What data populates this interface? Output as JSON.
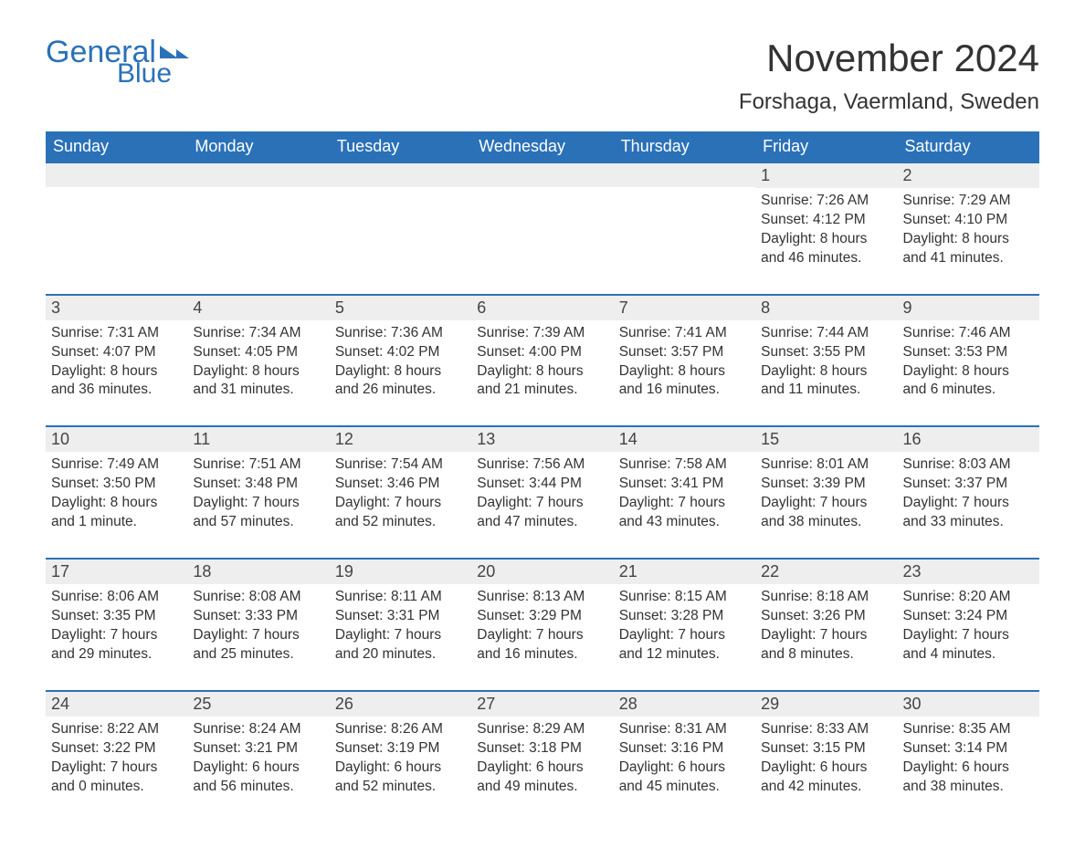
{
  "logo": {
    "text1": "General",
    "text2": "Blue"
  },
  "title": "November 2024",
  "location": "Forshaga, Vaermland, Sweden",
  "colors": {
    "brand": "#2a71b8",
    "header_bg": "#2a71b8",
    "header_text": "#ffffff",
    "daynum_bg": "#eeeeee",
    "text": "#333333",
    "page_bg": "#ffffff"
  },
  "weekdays": [
    "Sunday",
    "Monday",
    "Tuesday",
    "Wednesday",
    "Thursday",
    "Friday",
    "Saturday"
  ],
  "labels": {
    "sunrise": "Sunrise:",
    "sunset": "Sunset:",
    "daylight": "Daylight:"
  },
  "weeks": [
    [
      null,
      null,
      null,
      null,
      null,
      {
        "day": "1",
        "sunrise": "7:26 AM",
        "sunset": "4:12 PM",
        "daylight": "8 hours and 46 minutes."
      },
      {
        "day": "2",
        "sunrise": "7:29 AM",
        "sunset": "4:10 PM",
        "daylight": "8 hours and 41 minutes."
      }
    ],
    [
      {
        "day": "3",
        "sunrise": "7:31 AM",
        "sunset": "4:07 PM",
        "daylight": "8 hours and 36 minutes."
      },
      {
        "day": "4",
        "sunrise": "7:34 AM",
        "sunset": "4:05 PM",
        "daylight": "8 hours and 31 minutes."
      },
      {
        "day": "5",
        "sunrise": "7:36 AM",
        "sunset": "4:02 PM",
        "daylight": "8 hours and 26 minutes."
      },
      {
        "day": "6",
        "sunrise": "7:39 AM",
        "sunset": "4:00 PM",
        "daylight": "8 hours and 21 minutes."
      },
      {
        "day": "7",
        "sunrise": "7:41 AM",
        "sunset": "3:57 PM",
        "daylight": "8 hours and 16 minutes."
      },
      {
        "day": "8",
        "sunrise": "7:44 AM",
        "sunset": "3:55 PM",
        "daylight": "8 hours and 11 minutes."
      },
      {
        "day": "9",
        "sunrise": "7:46 AM",
        "sunset": "3:53 PM",
        "daylight": "8 hours and 6 minutes."
      }
    ],
    [
      {
        "day": "10",
        "sunrise": "7:49 AM",
        "sunset": "3:50 PM",
        "daylight": "8 hours and 1 minute."
      },
      {
        "day": "11",
        "sunrise": "7:51 AM",
        "sunset": "3:48 PM",
        "daylight": "7 hours and 57 minutes."
      },
      {
        "day": "12",
        "sunrise": "7:54 AM",
        "sunset": "3:46 PM",
        "daylight": "7 hours and 52 minutes."
      },
      {
        "day": "13",
        "sunrise": "7:56 AM",
        "sunset": "3:44 PM",
        "daylight": "7 hours and 47 minutes."
      },
      {
        "day": "14",
        "sunrise": "7:58 AM",
        "sunset": "3:41 PM",
        "daylight": "7 hours and 43 minutes."
      },
      {
        "day": "15",
        "sunrise": "8:01 AM",
        "sunset": "3:39 PM",
        "daylight": "7 hours and 38 minutes."
      },
      {
        "day": "16",
        "sunrise": "8:03 AM",
        "sunset": "3:37 PM",
        "daylight": "7 hours and 33 minutes."
      }
    ],
    [
      {
        "day": "17",
        "sunrise": "8:06 AM",
        "sunset": "3:35 PM",
        "daylight": "7 hours and 29 minutes."
      },
      {
        "day": "18",
        "sunrise": "8:08 AM",
        "sunset": "3:33 PM",
        "daylight": "7 hours and 25 minutes."
      },
      {
        "day": "19",
        "sunrise": "8:11 AM",
        "sunset": "3:31 PM",
        "daylight": "7 hours and 20 minutes."
      },
      {
        "day": "20",
        "sunrise": "8:13 AM",
        "sunset": "3:29 PM",
        "daylight": "7 hours and 16 minutes."
      },
      {
        "day": "21",
        "sunrise": "8:15 AM",
        "sunset": "3:28 PM",
        "daylight": "7 hours and 12 minutes."
      },
      {
        "day": "22",
        "sunrise": "8:18 AM",
        "sunset": "3:26 PM",
        "daylight": "7 hours and 8 minutes."
      },
      {
        "day": "23",
        "sunrise": "8:20 AM",
        "sunset": "3:24 PM",
        "daylight": "7 hours and 4 minutes."
      }
    ],
    [
      {
        "day": "24",
        "sunrise": "8:22 AM",
        "sunset": "3:22 PM",
        "daylight": "7 hours and 0 minutes."
      },
      {
        "day": "25",
        "sunrise": "8:24 AM",
        "sunset": "3:21 PM",
        "daylight": "6 hours and 56 minutes."
      },
      {
        "day": "26",
        "sunrise": "8:26 AM",
        "sunset": "3:19 PM",
        "daylight": "6 hours and 52 minutes."
      },
      {
        "day": "27",
        "sunrise": "8:29 AM",
        "sunset": "3:18 PM",
        "daylight": "6 hours and 49 minutes."
      },
      {
        "day": "28",
        "sunrise": "8:31 AM",
        "sunset": "3:16 PM",
        "daylight": "6 hours and 45 minutes."
      },
      {
        "day": "29",
        "sunrise": "8:33 AM",
        "sunset": "3:15 PM",
        "daylight": "6 hours and 42 minutes."
      },
      {
        "day": "30",
        "sunrise": "8:35 AM",
        "sunset": "3:14 PM",
        "daylight": "6 hours and 38 minutes."
      }
    ]
  ]
}
